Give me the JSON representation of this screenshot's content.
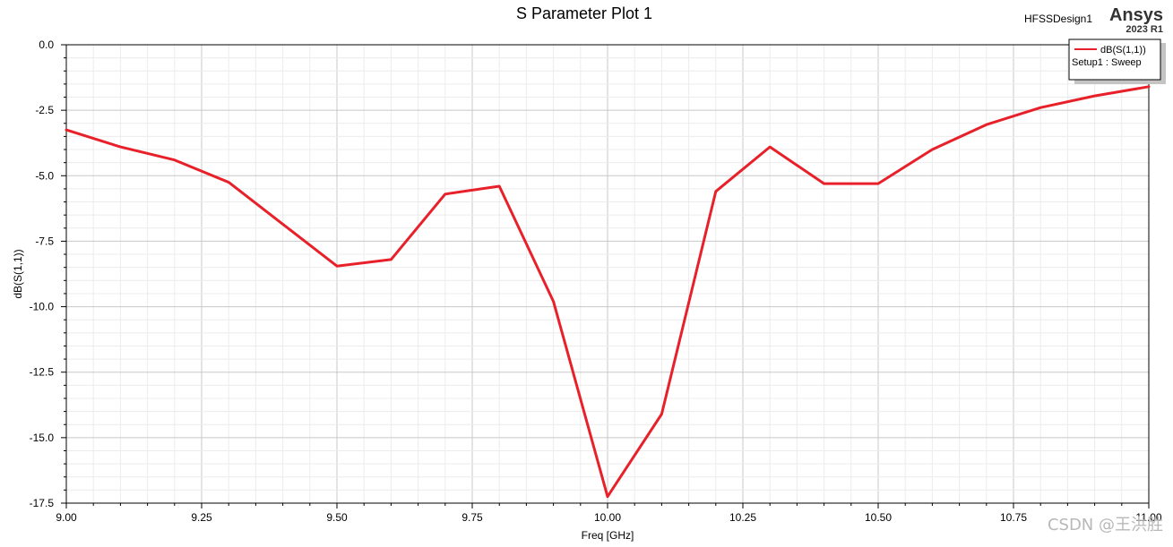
{
  "header": {
    "design_name": "HFSSDesign1",
    "brand": "Ansys",
    "release": "2023 R1"
  },
  "legend": {
    "entry": "dB(S(1,1))",
    "setup": "Setup1 : Sweep"
  },
  "watermark": "CSDN @王洪胜",
  "colors": {
    "series": "#e8202a",
    "major_grid": "#c8c8c8",
    "minor_grid": "#ececec"
  },
  "chart_data": {
    "type": "line",
    "title": "S Parameter Plot 1",
    "xlabel": "Freq [GHz]",
    "ylabel": "dB(S(1,1))",
    "xlim": [
      9.0,
      11.0
    ],
    "ylim": [
      -17.5,
      0.0
    ],
    "x_ticks": [
      "9.00",
      "9.25",
      "9.50",
      "9.75",
      "10.00",
      "10.25",
      "10.50",
      "10.75",
      "11.00"
    ],
    "y_ticks": [
      "0.0",
      "-2.5",
      "-5.0",
      "-7.5",
      "-10.0",
      "-12.5",
      "-15.0",
      "-17.5"
    ],
    "grid": true,
    "legend_position": "top-right",
    "series": [
      {
        "name": "dB(S(1,1))",
        "x": [
          9.0,
          9.1,
          9.2,
          9.3,
          9.4,
          9.5,
          9.6,
          9.7,
          9.8,
          9.9,
          10.0,
          10.1,
          10.2,
          10.3,
          10.4,
          10.5,
          10.6,
          10.7,
          10.8,
          10.9,
          11.0
        ],
        "y": [
          -3.25,
          -3.9,
          -4.4,
          -5.25,
          -6.85,
          -8.45,
          -8.2,
          -5.7,
          -5.4,
          -9.8,
          -17.25,
          -14.1,
          -5.6,
          -3.9,
          -5.3,
          -5.3,
          -4.0,
          -3.05,
          -2.4,
          -1.95,
          -1.6
        ]
      }
    ]
  }
}
